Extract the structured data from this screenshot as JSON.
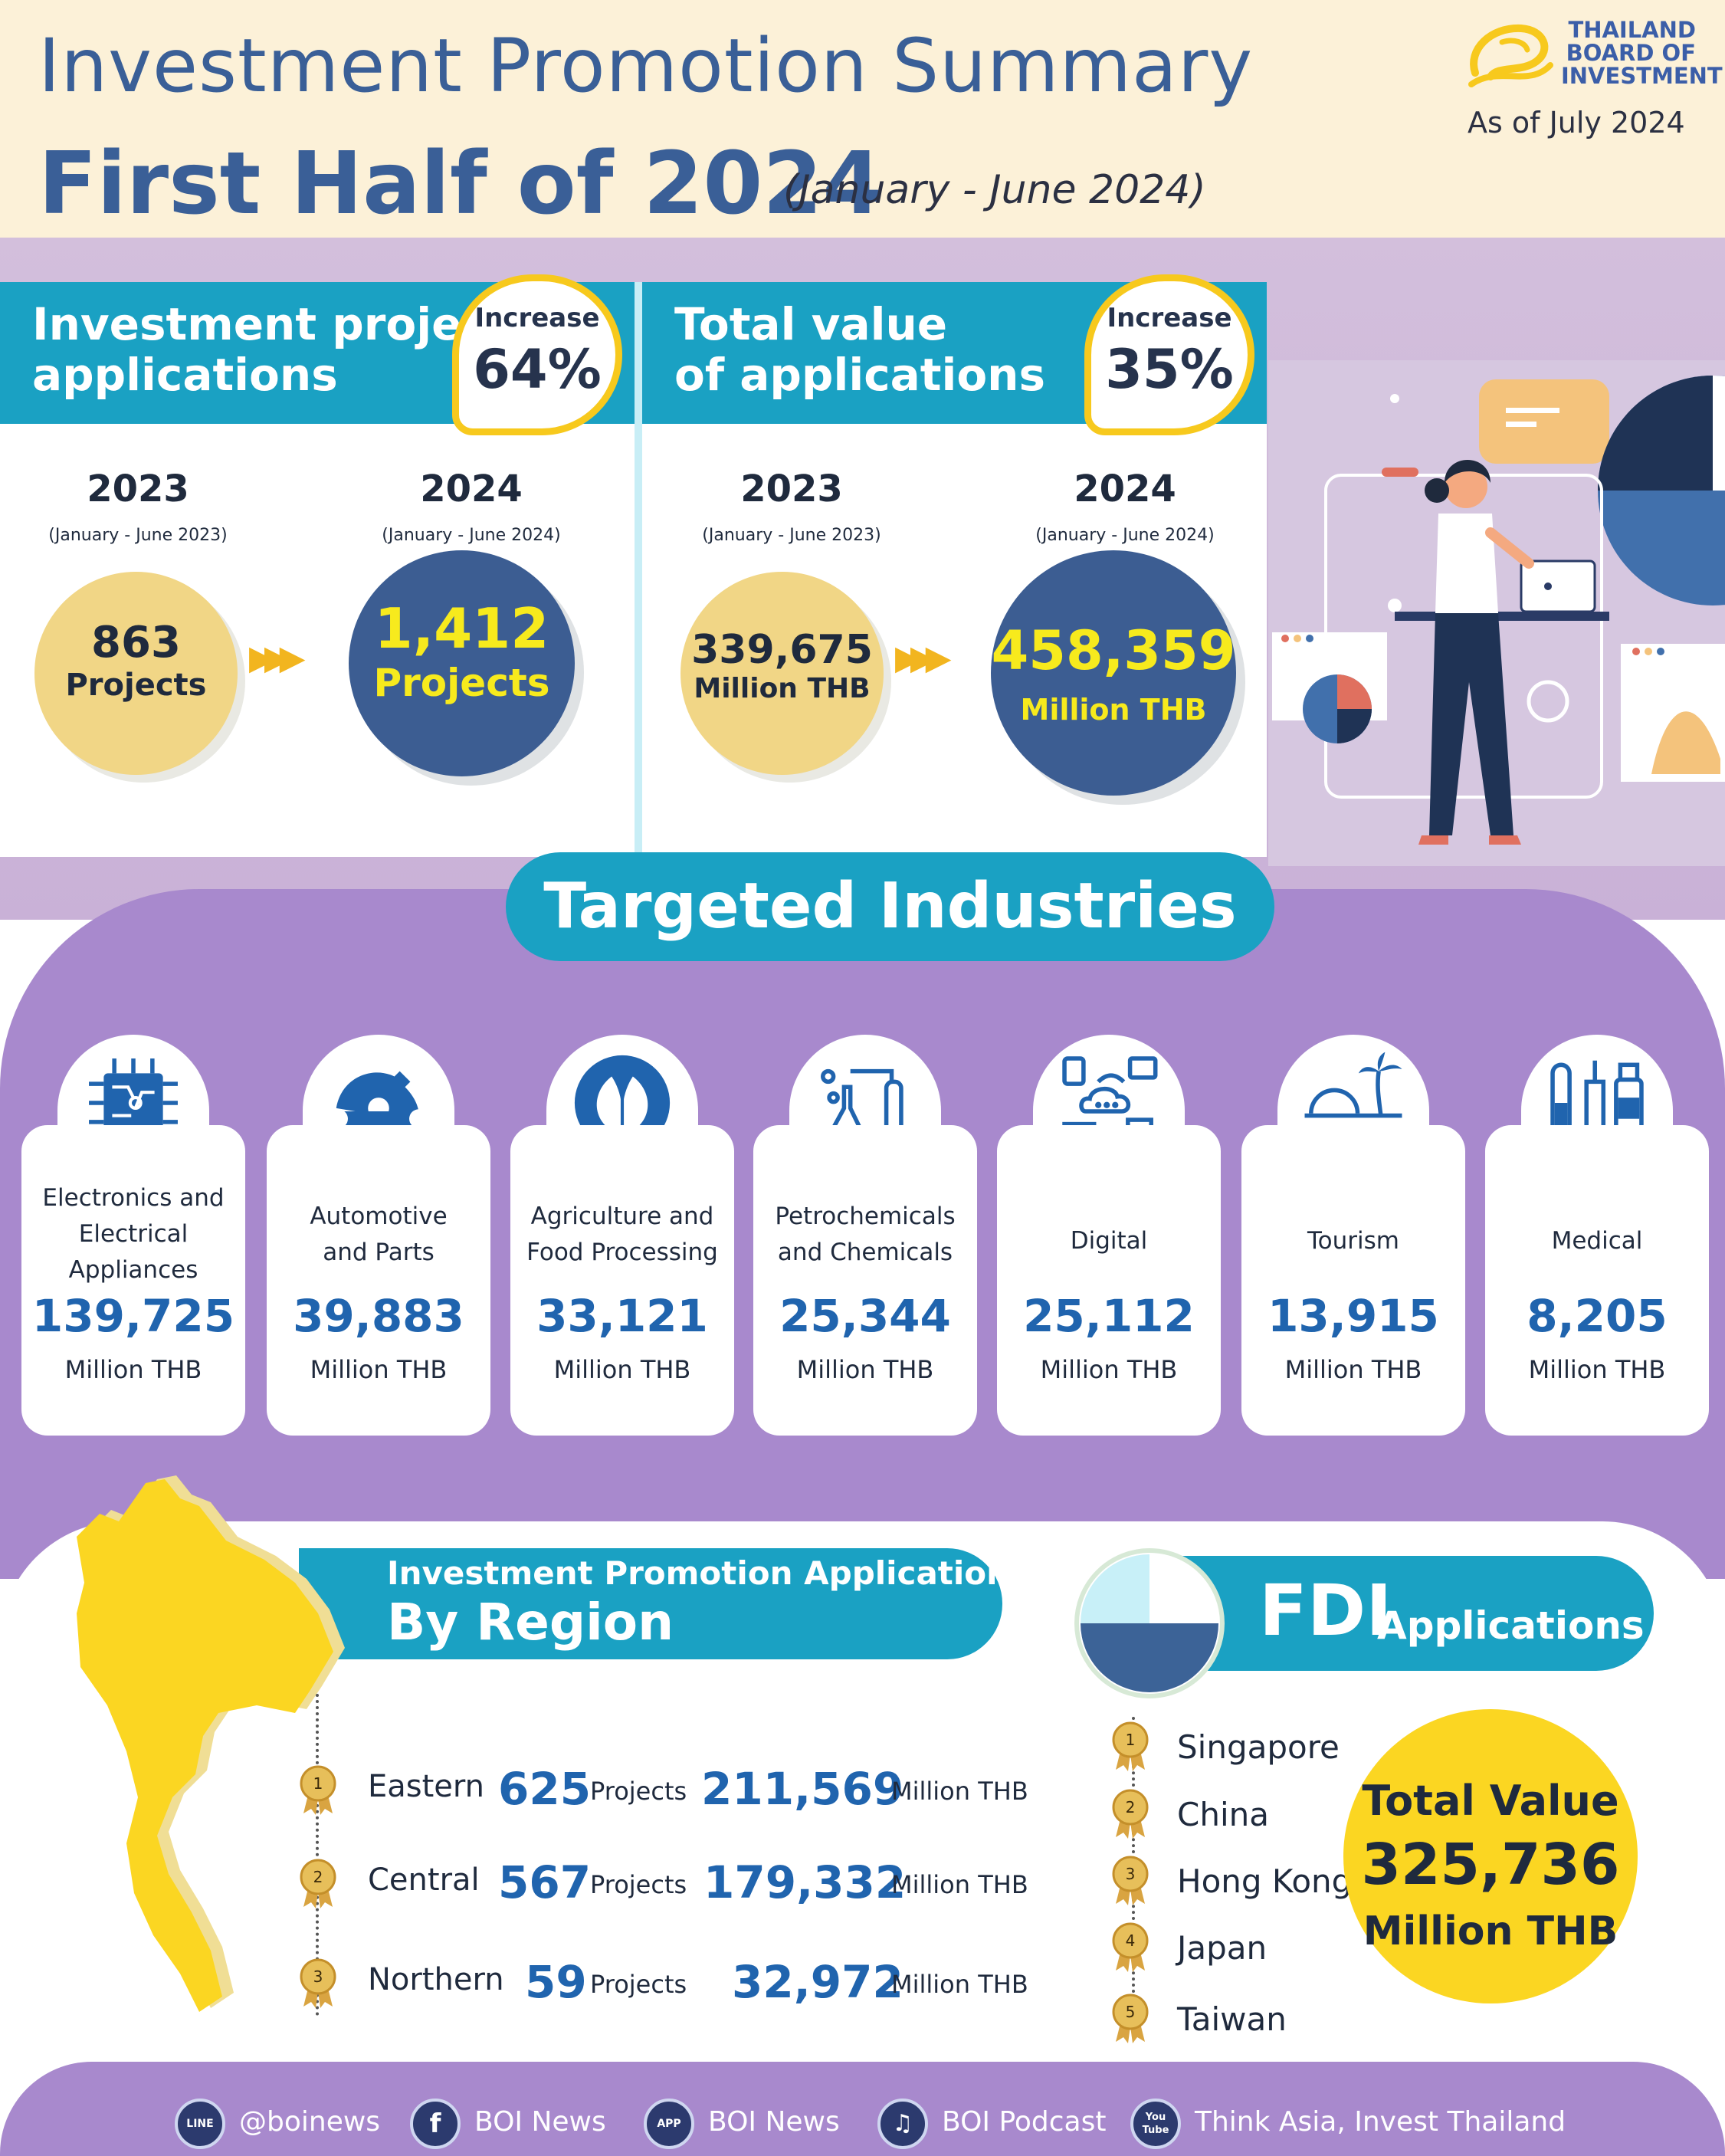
{
  "header": {
    "title_line1": "Investment Promotion Summary",
    "title_line2": "First Half of 2024",
    "period": "(January - June 2024)",
    "logo_text": [
      "THAILAND",
      "BOARD OF",
      "INVESTMENT"
    ],
    "as_of": "As of July 2024"
  },
  "projects_panel": {
    "title_line1": "Investment project",
    "title_line2": "applications",
    "badge_label": "Increase",
    "badge_value": "64%",
    "prev": {
      "year": "2023",
      "range": "(January - June 2023)",
      "value": "863",
      "unit": "Projects"
    },
    "curr": {
      "year": "2024",
      "range": "(January - June 2024)",
      "value": "1,412",
      "unit": "Projects"
    },
    "increase_percent": 64
  },
  "value_panel": {
    "title_line1": "Total value",
    "title_line2": "of applications",
    "badge_label": "Increase",
    "badge_value": "35%",
    "prev": {
      "year": "2023",
      "range": "(January - June 2023)",
      "value": "339,675",
      "unit": "Million THB"
    },
    "curr": {
      "year": "2024",
      "range": "(January - June 2024)",
      "value": "458,359",
      "unit": "Million THB"
    },
    "increase_percent": 35
  },
  "industries": {
    "title": "Targeted Industries",
    "items": [
      {
        "name": "Electronics and Electrical Appliances",
        "value": "139,725",
        "unit": "Million THB",
        "icon": "circuit-chip-icon"
      },
      {
        "name": "Automotive and Parts",
        "value": "39,883",
        "unit": "Million THB",
        "icon": "gear-wrench-icon"
      },
      {
        "name": "Agriculture and Food Processing",
        "value": "33,121",
        "unit": "Million THB",
        "icon": "leaf-icon"
      },
      {
        "name": "Petrochemicals and Chemicals",
        "value": "25,344",
        "unit": "Million THB",
        "icon": "lab-flask-icon"
      },
      {
        "name": "Digital",
        "value": "25,112",
        "unit": "Million THB",
        "icon": "cloud-network-icon"
      },
      {
        "name": "Tourism",
        "value": "13,915",
        "unit": "Million THB",
        "icon": "beach-palm-icon"
      },
      {
        "name": "Medical",
        "value": "8,205",
        "unit": "Million THB",
        "icon": "medical-vials-icon"
      }
    ]
  },
  "region": {
    "title_line1": "Investment Promotion Applications",
    "title_line2": "By Region",
    "rows": [
      {
        "rank": "1",
        "name": "Eastern",
        "projects": "625",
        "projects_label": "Projects",
        "value": "211,569",
        "value_label": "Million THB"
      },
      {
        "rank": "2",
        "name": "Central",
        "projects": "567",
        "projects_label": "Projects",
        "value": "179,332",
        "value_label": "Million THB"
      },
      {
        "rank": "3",
        "name": "Northern",
        "projects": "59",
        "projects_label": "Projects",
        "value": "32,972",
        "value_label": "Million THB"
      }
    ]
  },
  "fdi": {
    "title": "FDI",
    "subtitle": "Applications",
    "countries": [
      {
        "rank": "1",
        "name": "Singapore"
      },
      {
        "rank": "2",
        "name": "China"
      },
      {
        "rank": "3",
        "name": "Hong Kong"
      },
      {
        "rank": "4",
        "name": "Japan"
      },
      {
        "rank": "5",
        "name": "Taiwan"
      }
    ],
    "total_label": "Total Value",
    "total_value": "325,736",
    "total_unit": "Million THB"
  },
  "footer": {
    "links": [
      {
        "icon_text": "LINE",
        "label": "@boinews",
        "icon": "line-icon"
      },
      {
        "icon_text": "f",
        "label": "BOI News",
        "icon": "facebook-icon"
      },
      {
        "icon_text": "APP",
        "label": "BOI News",
        "icon": "app-icon"
      },
      {
        "icon_text": "♫",
        "label": "BOI Podcast",
        "icon": "podcast-icon"
      },
      {
        "icon_text": "You Tube",
        "label": "Think Asia, Invest Thailand",
        "icon": "youtube-icon"
      }
    ]
  },
  "colors": {
    "header_bg": "#fcf1d8",
    "title_blue": "#3a5f97",
    "teal": "#1aa1c3",
    "purple": "#a889cd",
    "accent_yellow": "#f7c91d",
    "value_blue": "#2064ae",
    "circle_navy": "#3c5d92",
    "circle_sand": "#f1d686"
  }
}
